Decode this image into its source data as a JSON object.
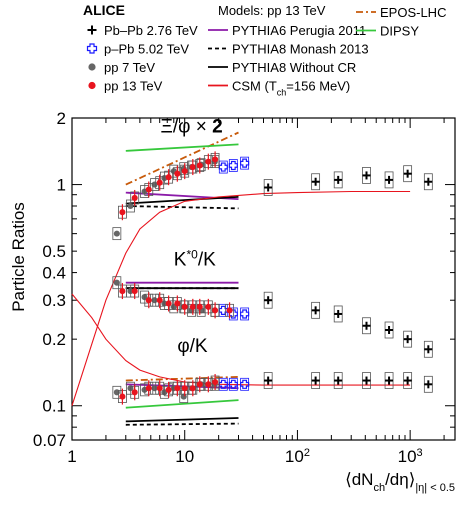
{
  "legend": {
    "experiment": "ALICE",
    "models_header": "Models: pp 13 TeV",
    "entries": [
      {
        "label": "Pb–Pb 2.76 TeV",
        "marker": "plus",
        "color": "#000000"
      },
      {
        "label": "p–Pb 5.02 TeV",
        "marker": "open-cross",
        "color": "#1a1aff"
      },
      {
        "label": "pp 7 TeV",
        "marker": "circle",
        "color": "#666666"
      },
      {
        "label": "pp 13 TeV",
        "marker": "circle",
        "color": "#e8141e"
      }
    ],
    "models": [
      {
        "label": "PYTHIA6 Perugia 2011",
        "color": "#8b1aa8",
        "style": "solid"
      },
      {
        "label": "PYTHIA8 Monash 2013",
        "color": "#000000",
        "style": "dashed"
      },
      {
        "label": "PYTHIA8 Without CR",
        "color": "#000000",
        "style": "solid"
      },
      {
        "label": "CSM (T",
        "sub": "ch",
        "suffix": "=156 MeV)",
        "color": "#e8141e",
        "style": "solid"
      },
      {
        "label": "EPOS-LHC",
        "color": "#c85a0a",
        "style": "dashdot"
      },
      {
        "label": "DIPSY",
        "color": "#36c83c",
        "style": "solid"
      }
    ]
  },
  "chart_data": {
    "type": "scatter",
    "xscale": "log",
    "yscale": "log",
    "xlim": [
      1,
      2500
    ],
    "ylim": [
      0.07,
      2
    ],
    "ylabel": "Particle Ratios",
    "xlabel_parts": {
      "a": "⟨dN",
      "sub1": "ch",
      "b": "/dη⟩",
      "sub2": "|η| < 0.5"
    },
    "xticks": [
      {
        "value": 1,
        "label": "1"
      },
      {
        "value": 10,
        "label": "10"
      },
      {
        "value": 100,
        "label": "10",
        "exp": "2"
      },
      {
        "value": 1000,
        "label": "10",
        "exp": "3"
      }
    ],
    "yticks": [
      {
        "value": 0.07,
        "label": "0.07"
      },
      {
        "value": 0.1,
        "label": "0.1"
      },
      {
        "value": 0.2,
        "label": "0.2"
      },
      {
        "value": 0.3,
        "label": "0.3"
      },
      {
        "value": 0.4,
        "label": "0.4"
      },
      {
        "value": 0.5,
        "label": "0.5"
      },
      {
        "value": 1,
        "label": "1"
      },
      {
        "value": 2,
        "label": "2"
      }
    ],
    "annotations": [
      {
        "text": "Ξ/φ × ",
        "bold": "2",
        "x": 6.1,
        "y": 1.72
      },
      {
        "text": "K",
        "sup": "*0",
        "suffix": "/K",
        "x": 8.0,
        "y": 0.43
      },
      {
        "text": "φ/K",
        "x": 8.6,
        "y": 0.175
      }
    ],
    "groups": [
      {
        "name": "xi_phi",
        "series": [
          {
            "system": "Pb–Pb 2.76 TeV",
            "x": [
              55,
              145,
              230,
              410,
              650,
              950,
              1450
            ],
            "y": [
              0.97,
              1.03,
              1.05,
              1.1,
              1.05,
              1.12,
              1.03
            ]
          },
          {
            "system": "p–Pb 5.02 TeV",
            "x": [
              22,
              27,
              34
            ],
            "y": [
              1.2,
              1.22,
              1.25
            ]
          },
          {
            "system": "pp 7 TeV",
            "x": [
              2.5,
              3.3,
              4.4,
              5.4,
              6.6,
              8.0,
              9.8,
              11.5,
              14,
              18.5
            ],
            "y": [
              0.6,
              0.8,
              0.93,
              1.0,
              1.07,
              1.15,
              1.18,
              1.2,
              1.23,
              1.27
            ]
          },
          {
            "system": "pp 13 TeV",
            "x": [
              2.8,
              3.6,
              4.8,
              6.0,
              7.2,
              8.6,
              10.0,
              11.8,
              13.6,
              16.2,
              18.6
            ],
            "y": [
              0.75,
              0.87,
              0.95,
              1.02,
              1.08,
              1.12,
              1.15,
              1.2,
              1.22,
              1.27,
              1.3
            ]
          }
        ],
        "models": [
          {
            "model": "PYTHIA6 Perugia 2011",
            "x": [
              3,
              30
            ],
            "y": [
              0.92,
              0.86
            ]
          },
          {
            "model": "PYTHIA8 Monash 2013",
            "x": [
              3,
              30
            ],
            "y": [
              0.8,
              0.78
            ]
          },
          {
            "model": "PYTHIA8 Without CR",
            "x": [
              3,
              30
            ],
            "y": [
              0.82,
              0.88
            ]
          },
          {
            "model": "EPOS-LHC",
            "x": [
              3,
              30
            ],
            "y": [
              1.0,
              1.72
            ]
          },
          {
            "model": "DIPSY",
            "x": [
              3,
              30
            ],
            "y": [
              1.42,
              1.52
            ]
          },
          {
            "model": "CSM",
            "x": [
              1,
              1.5,
              2,
              3,
              4,
              6,
              10,
              20,
              50,
              100,
              300,
              1000
            ],
            "y": [
              0.1,
              0.19,
              0.3,
              0.49,
              0.63,
              0.75,
              0.84,
              0.88,
              0.91,
              0.92,
              0.93,
              0.93
            ]
          }
        ]
      },
      {
        "name": "kstar_k",
        "series": [
          {
            "system": "Pb–Pb 2.76 TeV",
            "x": [
              55,
              145,
              230,
              410,
              650,
              950,
              1450
            ],
            "y": [
              0.3,
              0.27,
              0.26,
              0.23,
              0.22,
              0.2,
              0.18
            ]
          },
          {
            "system": "p–Pb 5.02 TeV",
            "x": [
              22,
              27,
              34
            ],
            "y": [
              0.27,
              0.26,
              0.26
            ]
          },
          {
            "system": "pp 7 TeV",
            "x": [
              2.5,
              3.3,
              4.4,
              5.4,
              6.6,
              8.0,
              9.8,
              11.5,
              14,
              18.5
            ],
            "y": [
              0.36,
              0.33,
              0.31,
              0.3,
              0.29,
              0.28,
              0.28,
              0.27,
              0.27,
              0.27
            ]
          },
          {
            "system": "pp 13 TeV",
            "x": [
              2.8,
              3.6,
              4.8,
              6.0,
              7.2,
              8.6,
              10.0,
              11.8,
              13.6,
              16.2,
              18.6,
              25
            ],
            "y": [
              0.33,
              0.33,
              0.3,
              0.3,
              0.29,
              0.29,
              0.28,
              0.28,
              0.28,
              0.28,
              0.27,
              0.27
            ]
          }
        ],
        "models": [
          {
            "model": "PYTHIA6 Perugia 2011",
            "x": [
              3,
              30
            ],
            "y": [
              0.36,
              0.36
            ]
          },
          {
            "model": "PYTHIA8 Monash 2013",
            "x": [
              3,
              30
            ],
            "y": [
              0.34,
              0.34
            ]
          },
          {
            "model": "PYTHIA8 Without CR",
            "x": [
              3,
              30
            ],
            "y": [
              0.34,
              0.34
            ]
          }
        ]
      },
      {
        "name": "phi_k",
        "series": [
          {
            "system": "Pb–Pb 2.76 TeV",
            "x": [
              55,
              145,
              230,
              410,
              650,
              950,
              1450
            ],
            "y": [
              0.13,
              0.13,
              0.13,
              0.13,
              0.13,
              0.13,
              0.125
            ]
          },
          {
            "system": "p–Pb 5.02 TeV",
            "x": [
              22,
              27,
              34
            ],
            "y": [
              0.125,
              0.125,
              0.125
            ]
          },
          {
            "system": "pp 7 TeV",
            "x": [
              2.5,
              3.3,
              4.4,
              5.4,
              6.6,
              8.0,
              9.8,
              11.5,
              14,
              18.5
            ],
            "y": [
              0.115,
              0.12,
              0.118,
              0.12,
              0.115,
              0.12,
              0.11,
              0.12,
              0.125,
              0.125
            ]
          },
          {
            "system": "pp 13 TeV",
            "x": [
              2.8,
              3.6,
              4.8,
              6.0,
              7.2,
              8.6,
              10.0,
              11.8,
              13.6,
              16.2,
              18.6
            ],
            "y": [
              0.11,
              0.115,
              0.12,
              0.12,
              0.118,
              0.12,
              0.12,
              0.12,
              0.125,
              0.125,
              0.128
            ]
          }
        ],
        "models": [
          {
            "model": "PYTHIA6 Perugia 2011",
            "x": [
              3,
              30
            ],
            "y": [
              0.125,
              0.12
            ]
          },
          {
            "model": "PYTHIA8 Monash 2013",
            "x": [
              3,
              30
            ],
            "y": [
              0.082,
              0.083
            ]
          },
          {
            "model": "PYTHIA8 Without CR",
            "x": [
              3,
              30
            ],
            "y": [
              0.085,
              0.088
            ]
          },
          {
            "model": "EPOS-LHC",
            "x": [
              3,
              30
            ],
            "y": [
              0.13,
              0.135
            ]
          },
          {
            "model": "DIPSY",
            "x": [
              3,
              30
            ],
            "y": [
              0.098,
              0.106
            ]
          },
          {
            "model": "CSM",
            "x": [
              1,
              1.5,
              2,
              3,
              4,
              6,
              10,
              20,
              50,
              100,
              300,
              1000
            ],
            "y": [
              0.32,
              0.25,
              0.2,
              0.16,
              0.145,
              0.135,
              0.128,
              0.125,
              0.124,
              0.124,
              0.124,
              0.124
            ]
          }
        ]
      }
    ]
  }
}
